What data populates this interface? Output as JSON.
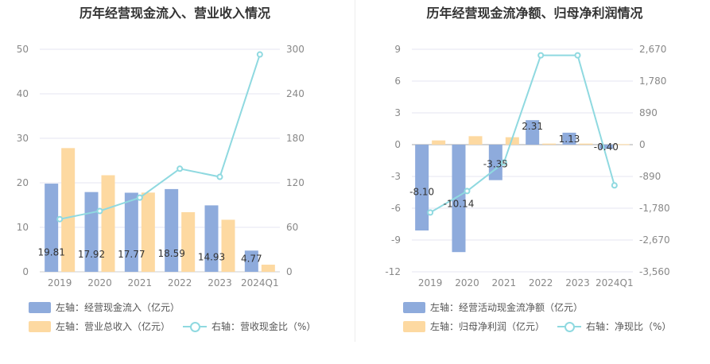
{
  "chart_data": [
    {
      "type": "bar",
      "title": "历年经营现金流入、营业收入情况",
      "categories": [
        "2019",
        "2020",
        "2021",
        "2022",
        "2023",
        "2024Q1"
      ],
      "left_axis": {
        "min": 0,
        "max": 50,
        "ticks": [
          "0",
          "10",
          "20",
          "30",
          "40",
          "50"
        ]
      },
      "right_axis": {
        "min": 0,
        "max": 300,
        "ticks": [
          "0",
          "60",
          "120",
          "180",
          "240",
          "300"
        ]
      },
      "series": [
        {
          "name": "左轴：经营现金流入（亿元）",
          "kind": "bar",
          "axis": "left",
          "color": "#8eabdc",
          "values": [
            19.81,
            17.92,
            17.77,
            18.59,
            14.93,
            4.77
          ],
          "labels": [
            "19.81",
            "17.92",
            "17.77",
            "18.59",
            "14.93",
            "4.77"
          ]
        },
        {
          "name": "左轴：营业总收入（亿元）",
          "kind": "bar",
          "axis": "left",
          "color": "#fdd9a1",
          "values": [
            27.8,
            21.7,
            17.8,
            13.4,
            11.7,
            1.6
          ]
        },
        {
          "name": "右轴：营收现金比（%）",
          "kind": "line",
          "axis": "right",
          "color": "#8fd9e0",
          "values": [
            71,
            82,
            100,
            139,
            128,
            293
          ]
        }
      ]
    },
    {
      "type": "bar",
      "title": "历年经营现金流净额、归母净利润情况",
      "categories": [
        "2019",
        "2020",
        "2021",
        "2022",
        "2023",
        "2024Q1"
      ],
      "left_axis": {
        "min": -12,
        "max": 9,
        "ticks": [
          "-12",
          "-9",
          "-6",
          "-3",
          "0",
          "3",
          "6",
          "9"
        ]
      },
      "right_axis": {
        "min": -3560,
        "max": 2670,
        "ticks": [
          "-3,560",
          "-2,670",
          "-1,780",
          "-890",
          "0",
          "890",
          "1,780",
          "2,670"
        ]
      },
      "series": [
        {
          "name": "左轴：经营活动现金流净额（亿元）",
          "kind": "bar",
          "axis": "left",
          "color": "#8eabdc",
          "values": [
            -8.1,
            -10.14,
            -3.35,
            2.31,
            1.13,
            -0.4
          ],
          "labels": [
            "-8.10",
            "-10.14",
            "-3.35",
            "2.31",
            "1.13",
            "-0.40"
          ]
        },
        {
          "name": "左轴：归母净利润（亿元）",
          "kind": "bar",
          "axis": "left",
          "color": "#fdd9a1",
          "values": [
            0.4,
            0.8,
            0.7,
            0.1,
            0.1,
            0.05
          ]
        },
        {
          "name": "右轴：净现比（%）",
          "kind": "line",
          "axis": "right",
          "color": "#8fd9e0",
          "values": [
            -1900,
            -1300,
            -500,
            2500,
            2500,
            -1140
          ]
        }
      ]
    }
  ]
}
